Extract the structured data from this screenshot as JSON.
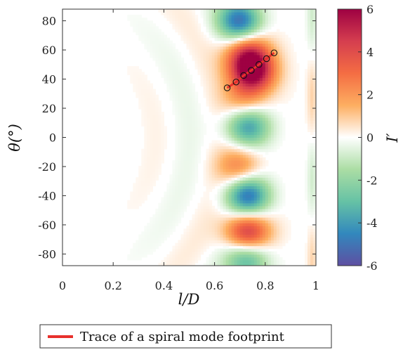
{
  "chart_data": {
    "type": "heatmap",
    "xlabel": "l/D",
    "ylabel": "θ(°)",
    "colorbar_label": "I′",
    "xlim": [
      0,
      1
    ],
    "ylim": [
      -88,
      88
    ],
    "x_ticks": [
      0,
      0.2,
      0.4,
      0.6,
      0.8,
      1
    ],
    "x_tick_labels": [
      "0",
      "0.2",
      "0.4",
      "0.6",
      "0.8",
      "1"
    ],
    "y_ticks": [
      -80,
      -60,
      -40,
      -20,
      0,
      20,
      40,
      60,
      80
    ],
    "y_tick_labels": [
      "-80",
      "-60",
      "-40",
      "-20",
      "0",
      "20",
      "40",
      "60",
      "80"
    ],
    "clim": [
      -6,
      6
    ],
    "colorbar_ticks": [
      -6,
      -4,
      -2,
      0,
      2,
      4,
      6
    ],
    "colorbar_tick_labels": [
      "-6",
      "-4",
      "-2",
      "0",
      "2",
      "4",
      "6"
    ],
    "colormap": [
      "#5e4fa2",
      "#3288bd",
      "#66c2a5",
      "#abdda4",
      "#ffffff",
      "#fdae61",
      "#f46d43",
      "#d53e4f",
      "#9e0142"
    ],
    "field_features": [
      {
        "l_over_D": 0.7,
        "theta_deg": 80,
        "I_prime": -5.0
      },
      {
        "l_over_D": 0.73,
        "theta_deg": 58,
        "I_prime": 4.0
      },
      {
        "l_over_D": 0.75,
        "theta_deg": 45,
        "I_prime": 6.0
      },
      {
        "l_over_D": 0.72,
        "theta_deg": 25,
        "I_prime": 2.0
      },
      {
        "l_over_D": 0.73,
        "theta_deg": 8,
        "I_prime": -4.0
      },
      {
        "l_over_D": 0.7,
        "theta_deg": -20,
        "I_prime": 2.5
      },
      {
        "l_over_D": 0.73,
        "theta_deg": -40,
        "I_prime": -5.0
      },
      {
        "l_over_D": 0.73,
        "theta_deg": -65,
        "I_prime": 5.0
      },
      {
        "l_over_D": 0.73,
        "theta_deg": -83,
        "I_prime": -3.5
      }
    ],
    "spiral_trace": {
      "color": "#e8302c",
      "points": [
        {
          "x": 0.65,
          "y": 34
        },
        {
          "x": 0.685,
          "y": 38
        },
        {
          "x": 0.715,
          "y": 42.5
        },
        {
          "x": 0.745,
          "y": 46
        },
        {
          "x": 0.775,
          "y": 50
        },
        {
          "x": 0.805,
          "y": 54
        },
        {
          "x": 0.835,
          "y": 58
        }
      ]
    },
    "legend": {
      "entries": [
        {
          "label": "Trace of a spiral mode footprint",
          "color": "#e8302c"
        }
      ],
      "placement": "bottom"
    }
  }
}
